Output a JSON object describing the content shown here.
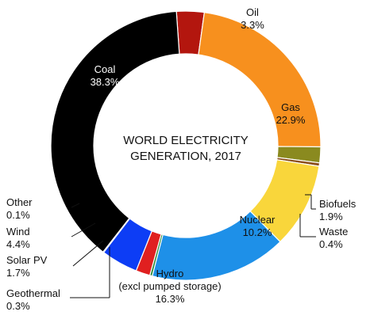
{
  "chart_data": {
    "type": "pie",
    "title": "WORLD ELECTRICITY\nGENERATION, 2017",
    "slices": [
      {
        "label": "Oil",
        "value": 3.3,
        "display": "3.3%",
        "color": "#b3160e"
      },
      {
        "label": "Gas",
        "value": 22.9,
        "display": "22.9%",
        "color": "#f7901e"
      },
      {
        "label": "Biofuels",
        "value": 1.9,
        "display": "1.9%",
        "color": "#8a8a1f"
      },
      {
        "label": "Waste",
        "value": 0.4,
        "display": "0.4%",
        "color": "#8c4f1a"
      },
      {
        "label": "Nuclear",
        "value": 10.2,
        "display": "10.2%",
        "color": "#f9d63b"
      },
      {
        "label": "Hydro\n(excl pumped storage)",
        "value": 16.3,
        "display": "16.3%",
        "color": "#1e90e8"
      },
      {
        "label": "Geothermal",
        "value": 0.3,
        "display": "0.3%",
        "color": "#2e8b3a"
      },
      {
        "label": "Solar PV",
        "value": 1.7,
        "display": "1.7%",
        "color": "#e02020"
      },
      {
        "label": "Wind",
        "value": 4.4,
        "display": "4.4%",
        "color": "#0d3df5"
      },
      {
        "label": "Other",
        "value": 0.1,
        "display": "0.1%",
        "color": "#c8102e"
      },
      {
        "label": "Coal",
        "value": 38.3,
        "display": "38.3%",
        "color": "#000000"
      }
    ]
  }
}
